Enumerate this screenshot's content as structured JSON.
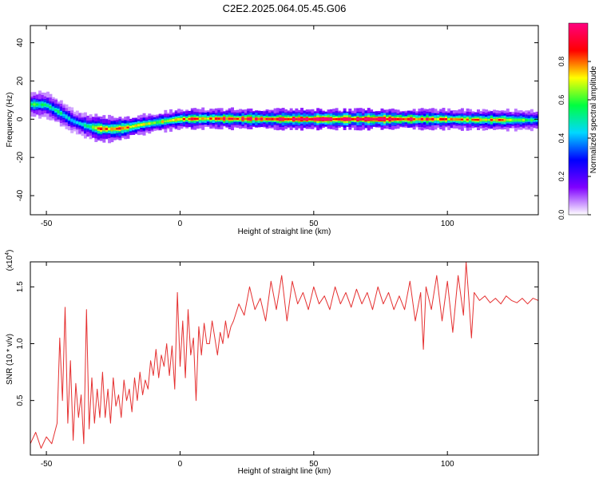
{
  "title": "C2E2.2025.064.05.45.G06",
  "chart_data": [
    {
      "type": "heatmap",
      "xlabel": "Height of straight line (km)",
      "ylabel": "Frequency (Hz)",
      "xlim": [
        -56,
        134
      ],
      "ylim": [
        -50,
        49
      ],
      "xticks": [
        -50,
        0,
        50,
        100
      ],
      "yticks": [
        -40,
        -20,
        0,
        20,
        40
      ],
      "colorbar": {
        "label": "Normalized spectral amplitude",
        "range": [
          0,
          1
        ],
        "ticks": [
          "0.0",
          "0.2",
          "0.4",
          "0.6",
          "0.8"
        ],
        "colors": [
          "#ffffff",
          "#8000ff",
          "#0000ff",
          "#00d8ff",
          "#00ff40",
          "#ffff00",
          "#ff0000",
          "#ff0080"
        ]
      },
      "ridge": {
        "x": [
          -56,
          -50,
          -45,
          -40,
          -35,
          -30,
          -25,
          -20,
          -15,
          -10,
          -5,
          0,
          10,
          20,
          30,
          40,
          50,
          60,
          70,
          80,
          90,
          100,
          110,
          120,
          134
        ],
        "freq": [
          7.8,
          7.5,
          3.5,
          -1.0,
          -3.5,
          -5.0,
          -5.2,
          -4.5,
          -3.0,
          -2.0,
          -1.0,
          0.0,
          0.3,
          0.2,
          0.1,
          0.0,
          0.0,
          0.0,
          0.0,
          0.0,
          0.0,
          0.0,
          -0.3,
          -0.4,
          -0.5
        ],
        "amplitude": [
          0.55,
          0.6,
          0.5,
          0.45,
          0.55,
          0.75,
          0.85,
          0.8,
          0.7,
          0.65,
          0.7,
          0.8,
          0.85,
          0.85,
          0.9,
          0.95,
          0.98,
          0.98,
          0.98,
          0.95,
          0.85,
          0.8,
          0.75,
          0.8,
          0.5
        ]
      }
    },
    {
      "type": "line",
      "xlabel": "Height of straight line (km)",
      "ylabel": "SNR (10 * v/v)",
      "y_multiplier": "(x10^4)",
      "xlim": [
        -56,
        134
      ],
      "ylim": [
        0.02,
        1.72
      ],
      "xticks": [
        -50,
        0,
        50,
        100
      ],
      "yticks": [
        "0.5",
        "1.0",
        "1.5"
      ],
      "color": "#e53030",
      "series": [
        {
          "x": [
            -56,
            -54,
            -52,
            -50,
            -48,
            -46,
            -45,
            -44,
            -43,
            -42,
            -41,
            -40,
            -39,
            -38,
            -37,
            -36,
            -35,
            -34,
            -33,
            -32,
            -31,
            -30,
            -29,
            -28,
            -27,
            -26,
            -25,
            -24,
            -23,
            -22,
            -21,
            -20,
            -19,
            -18,
            -17,
            -16,
            -15,
            -14,
            -13,
            -12,
            -11,
            -10,
            -9,
            -8,
            -7,
            -6,
            -5,
            -4,
            -3,
            -2,
            -1,
            0,
            1,
            2,
            3,
            4,
            5,
            6,
            7,
            8,
            9,
            10,
            11,
            12,
            13,
            14,
            15,
            16,
            17,
            18,
            19,
            20,
            22,
            24,
            26,
            28,
            30,
            32,
            34,
            36,
            38,
            40,
            42,
            44,
            46,
            48,
            50,
            52,
            54,
            56,
            58,
            60,
            62,
            64,
            66,
            68,
            70,
            72,
            74,
            76,
            78,
            80,
            82,
            84,
            86,
            88,
            90,
            91,
            92,
            94,
            96,
            98,
            100,
            102,
            104,
            106,
            107,
            108,
            109,
            110,
            112,
            114,
            116,
            118,
            120,
            122,
            124,
            126,
            128,
            130,
            132,
            134
          ],
          "y": [
            0.12,
            0.22,
            0.08,
            0.18,
            0.12,
            0.3,
            1.05,
            0.5,
            1.32,
            0.3,
            0.85,
            0.15,
            0.65,
            0.35,
            0.55,
            0.12,
            1.3,
            0.25,
            0.7,
            0.3,
            0.6,
            0.35,
            0.75,
            0.35,
            0.6,
            0.3,
            0.7,
            0.45,
            0.55,
            0.35,
            0.68,
            0.5,
            0.6,
            0.4,
            0.7,
            0.5,
            0.75,
            0.55,
            0.68,
            0.6,
            0.85,
            0.72,
            0.95,
            0.7,
            0.9,
            0.8,
            1.0,
            0.72,
            0.98,
            0.6,
            1.45,
            0.8,
            1.2,
            0.7,
            1.3,
            0.9,
            1.05,
            0.5,
            1.15,
            0.9,
            1.18,
            1.0,
            1.0,
            1.2,
            1.05,
            0.9,
            1.1,
            1.0,
            1.2,
            1.05,
            1.15,
            1.2,
            1.35,
            1.25,
            1.5,
            1.3,
            1.4,
            1.2,
            1.55,
            1.3,
            1.6,
            1.2,
            1.55,
            1.35,
            1.45,
            1.3,
            1.5,
            1.35,
            1.42,
            1.3,
            1.5,
            1.35,
            1.45,
            1.32,
            1.48,
            1.35,
            1.45,
            1.3,
            1.5,
            1.35,
            1.45,
            1.3,
            1.42,
            1.3,
            1.55,
            1.2,
            1.45,
            0.95,
            1.5,
            1.3,
            1.6,
            1.2,
            1.55,
            1.1,
            1.6,
            1.25,
            1.72,
            1.4,
            1.05,
            1.45,
            1.38,
            1.42,
            1.36,
            1.4,
            1.35,
            1.42,
            1.38,
            1.36,
            1.4,
            1.35,
            1.4,
            1.38
          ]
        }
      ]
    }
  ]
}
